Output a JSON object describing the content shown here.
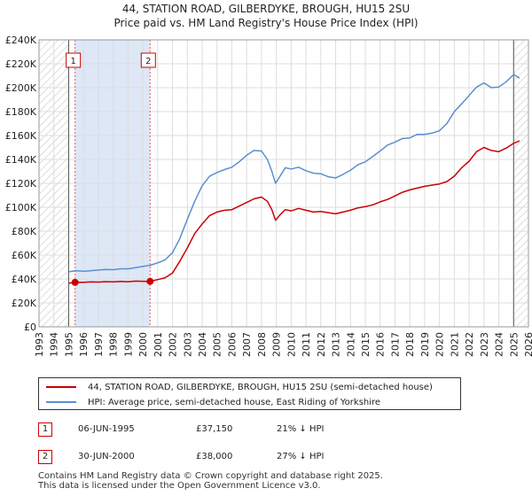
{
  "title_line1": "44, STATION ROAD, GILBERDYKE, BROUGH, HU15 2SU",
  "title_line2": "Price paid vs. HM Land Registry's House Price Index (HPI)",
  "chart_data": {
    "type": "line",
    "x_range": [
      1993,
      2026
    ],
    "y_range": [
      0,
      240000
    ],
    "y_ticks": [
      {
        "value": 0,
        "label": "£0"
      },
      {
        "value": 20000,
        "label": "£20K"
      },
      {
        "value": 40000,
        "label": "£40K"
      },
      {
        "value": 60000,
        "label": "£60K"
      },
      {
        "value": 80000,
        "label": "£80K"
      },
      {
        "value": 100000,
        "label": "£100K"
      },
      {
        "value": 120000,
        "label": "£120K"
      },
      {
        "value": 140000,
        "label": "£140K"
      },
      {
        "value": 160000,
        "label": "£160K"
      },
      {
        "value": 180000,
        "label": "£180K"
      },
      {
        "value": 200000,
        "label": "£200K"
      },
      {
        "value": 220000,
        "label": "£220K"
      },
      {
        "value": 240000,
        "label": "£240K"
      }
    ],
    "x_ticks": [
      "1993",
      "1994",
      "1995",
      "1996",
      "1997",
      "1998",
      "1999",
      "2000",
      "2001",
      "2002",
      "2003",
      "2004",
      "2005",
      "2006",
      "2007",
      "2008",
      "2009",
      "2010",
      "2011",
      "2012",
      "2013",
      "2014",
      "2015",
      "2016",
      "2017",
      "2018",
      "2019",
      "2020",
      "2021",
      "2022",
      "2023",
      "2024",
      "2025",
      "2026"
    ],
    "hatch_before": 1995.0,
    "hatch_after": 2025.0,
    "sale_band": [
      1995.43,
      2000.49
    ],
    "series": [
      {
        "name": "44, STATION ROAD, GILBERDYKE, BROUGH, HU15 2SU (semi-detached house)",
        "color": "#cc0000",
        "points": [
          [
            1995.0,
            36500
          ],
          [
            1995.43,
            37150
          ],
          [
            1996,
            37200
          ],
          [
            1996.5,
            37600
          ],
          [
            1997,
            37400
          ],
          [
            1997.5,
            37800
          ],
          [
            1998,
            37600
          ],
          [
            1998.5,
            38000
          ],
          [
            1999,
            37700
          ],
          [
            1999.5,
            38200
          ],
          [
            2000,
            38100
          ],
          [
            2000.49,
            38000
          ],
          [
            2001,
            39500
          ],
          [
            2001.5,
            41000
          ],
          [
            2002,
            45000
          ],
          [
            2002.5,
            55000
          ],
          [
            2003,
            66000
          ],
          [
            2003.5,
            78000
          ],
          [
            2004,
            86000
          ],
          [
            2004.5,
            93000
          ],
          [
            2005,
            96000
          ],
          [
            2005.5,
            97500
          ],
          [
            2006,
            98000
          ],
          [
            2006.5,
            101000
          ],
          [
            2007,
            104000
          ],
          [
            2007.5,
            107000
          ],
          [
            2008,
            108500
          ],
          [
            2008.4,
            105000
          ],
          [
            2008.7,
            98000
          ],
          [
            2008.95,
            89000
          ],
          [
            2009.2,
            93000
          ],
          [
            2009.6,
            98000
          ],
          [
            2010,
            97000
          ],
          [
            2010.5,
            99000
          ],
          [
            2011,
            97500
          ],
          [
            2011.5,
            96000
          ],
          [
            2012,
            96500
          ],
          [
            2012.5,
            95500
          ],
          [
            2013,
            94500
          ],
          [
            2013.5,
            96000
          ],
          [
            2014,
            97500
          ],
          [
            2014.5,
            99500
          ],
          [
            2015,
            100500
          ],
          [
            2015.5,
            102000
          ],
          [
            2016,
            104500
          ],
          [
            2016.5,
            106500
          ],
          [
            2017,
            109500
          ],
          [
            2017.5,
            112500
          ],
          [
            2018,
            114500
          ],
          [
            2018.5,
            116000
          ],
          [
            2019,
            117500
          ],
          [
            2019.5,
            118500
          ],
          [
            2020,
            119500
          ],
          [
            2020.5,
            121500
          ],
          [
            2021,
            126000
          ],
          [
            2021.5,
            133000
          ],
          [
            2022,
            138500
          ],
          [
            2022.5,
            146500
          ],
          [
            2023,
            150000
          ],
          [
            2023.5,
            147500
          ],
          [
            2024,
            146500
          ],
          [
            2024.5,
            149500
          ],
          [
            2025,
            153500
          ],
          [
            2025.4,
            155500
          ]
        ]
      },
      {
        "name": "HPI: Average price, semi-detached house, East Riding of Yorkshire",
        "color": "#5b8fce",
        "points": [
          [
            1995.0,
            46000
          ],
          [
            1995.5,
            47000
          ],
          [
            1996,
            46500
          ],
          [
            1996.5,
            47000
          ],
          [
            1997,
            47500
          ],
          [
            1997.5,
            48000
          ],
          [
            1998,
            47800
          ],
          [
            1998.5,
            48500
          ],
          [
            1999,
            48500
          ],
          [
            1999.5,
            49500
          ],
          [
            2000,
            50500
          ],
          [
            2000.5,
            51500
          ],
          [
            2001,
            53500
          ],
          [
            2001.5,
            56000
          ],
          [
            2002,
            62000
          ],
          [
            2002.5,
            74000
          ],
          [
            2003,
            90000
          ],
          [
            2003.5,
            105000
          ],
          [
            2004,
            118000
          ],
          [
            2004.5,
            126000
          ],
          [
            2005,
            129000
          ],
          [
            2005.5,
            131500
          ],
          [
            2006,
            133500
          ],
          [
            2006.5,
            138000
          ],
          [
            2007,
            143500
          ],
          [
            2007.5,
            147500
          ],
          [
            2008,
            147000
          ],
          [
            2008.4,
            140000
          ],
          [
            2008.7,
            130000
          ],
          [
            2008.95,
            120000
          ],
          [
            2009.2,
            125000
          ],
          [
            2009.6,
            133000
          ],
          [
            2010,
            132000
          ],
          [
            2010.5,
            133500
          ],
          [
            2011,
            130500
          ],
          [
            2011.5,
            128500
          ],
          [
            2012,
            128000
          ],
          [
            2012.5,
            125500
          ],
          [
            2013,
            124500
          ],
          [
            2013.5,
            127500
          ],
          [
            2014,
            131000
          ],
          [
            2014.5,
            135500
          ],
          [
            2015,
            138000
          ],
          [
            2015.5,
            142500
          ],
          [
            2016,
            147000
          ],
          [
            2016.5,
            152000
          ],
          [
            2017,
            154500
          ],
          [
            2017.5,
            157500
          ],
          [
            2018,
            158000
          ],
          [
            2018.5,
            161000
          ],
          [
            2019,
            161000
          ],
          [
            2019.5,
            162000
          ],
          [
            2020,
            164000
          ],
          [
            2020.5,
            170000
          ],
          [
            2021,
            180000
          ],
          [
            2021.5,
            186500
          ],
          [
            2022,
            193500
          ],
          [
            2022.5,
            200500
          ],
          [
            2023,
            204000
          ],
          [
            2023.5,
            200000
          ],
          [
            2024,
            200500
          ],
          [
            2024.5,
            205000
          ],
          [
            2025,
            211000
          ],
          [
            2025.4,
            208000
          ]
        ]
      }
    ],
    "sales": [
      {
        "label": "1",
        "x": 1995.43,
        "y": 37150
      },
      {
        "label": "2",
        "x": 2000.49,
        "y": 38000
      }
    ]
  },
  "legend": {
    "red_label": "44, STATION ROAD, GILBERDYKE, BROUGH, HU15 2SU (semi-detached house)",
    "blue_label": "HPI: Average price, semi-detached house, East Riding of Yorkshire"
  },
  "sales_table": [
    {
      "num": "1",
      "date": "06-JUN-1995",
      "price": "£37,150",
      "hpi": "21% ↓ HPI"
    },
    {
      "num": "2",
      "date": "30-JUN-2000",
      "price": "£38,000",
      "hpi": "27% ↓ HPI"
    }
  ],
  "footer_line1": "Contains HM Land Registry data © Crown copyright and database right 2025.",
  "footer_line2": "This data is licensed under the Open Government Licence v3.0."
}
